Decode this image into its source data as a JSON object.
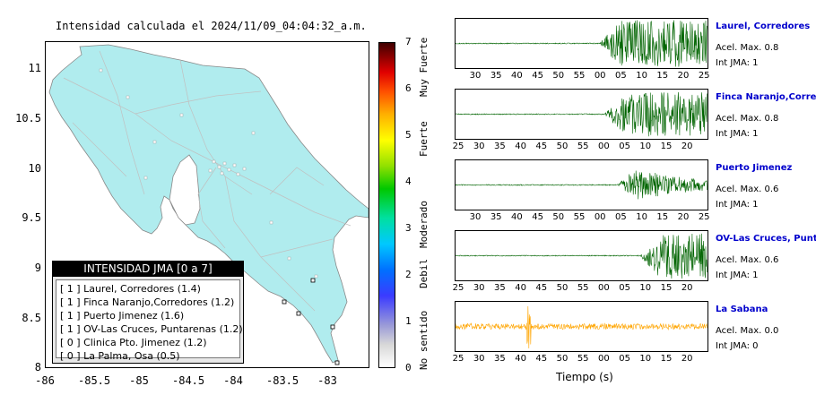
{
  "map": {
    "title": "Intensidad calculada el 2024/11/09_04:04:32_a.m.",
    "y_ticks": [
      "11",
      "10.5",
      "10",
      "9.5",
      "9",
      "8.5",
      "8"
    ],
    "x_ticks": [
      "-86",
      "-85.5",
      "-85",
      "-84.5",
      "-84",
      "-83.5",
      "-83"
    ],
    "land_color": "#b0ecee"
  },
  "legend": {
    "title": "INTENSIDAD JMA [0 a 7]",
    "rows": [
      "[ 1 ]  Laurel, Corredores (1.4)",
      "[ 1 ]  Finca Naranjo,Corredores (1.2)",
      "[ 1 ]  Puerto Jimenez (1.6)",
      "[ 1 ]  OV-Las Cruces, Puntarenas (1.2)",
      "[ 0 ]  Clinica Pto. Jimenez (1.2)",
      "[ 0 ]  La Palma, Osa (0.5)"
    ]
  },
  "colorbar": {
    "ticks": [
      "7",
      "6",
      "5",
      "4",
      "3",
      "2",
      "1",
      "0"
    ],
    "labels": [
      "Muy Fuerte",
      "Fuerte",
      "Moderado",
      "Debil",
      "No sentido"
    ]
  },
  "waveforms": {
    "xlabel": "Tiempo (s)",
    "stations": [
      {
        "name": "Laurel, Corredores",
        "accel": "Acel. Max. 0.8",
        "jma": "Int JMA: 1",
        "color": "#006400",
        "onset": 0.57,
        "amp": 0.95,
        "ticks": [
          "30",
          "35",
          "40",
          "45",
          "50",
          "55",
          "00",
          "05",
          "10",
          "15",
          "20",
          "25"
        ]
      },
      {
        "name": "Finca Naranjo,Corredores",
        "accel": "Acel. Max. 0.8",
        "jma": "Int JMA: 1",
        "color": "#006400",
        "onset": 0.59,
        "amp": 0.9,
        "ticks": [
          "25",
          "30",
          "35",
          "40",
          "45",
          "50",
          "55",
          "00",
          "05",
          "10",
          "15",
          "20"
        ]
      },
      {
        "name": "Puerto Jimenez",
        "accel": "Acel. Max. 0.6",
        "jma": "Int JMA: 1",
        "color": "#006400",
        "onset": 0.64,
        "amp": 0.9,
        "ticks": [
          "30",
          "35",
          "40",
          "45",
          "50",
          "55",
          "00",
          "05",
          "10",
          "15",
          "20",
          "25"
        ]
      },
      {
        "name": "OV-Las Cruces, Puntarenas",
        "accel": "Acel. Max. 0.6",
        "jma": "Int JMA: 1",
        "color": "#006400",
        "onset": 0.73,
        "amp": 0.95,
        "ticks": [
          "25",
          "30",
          "35",
          "40",
          "45",
          "50",
          "55",
          "00",
          "05",
          "10",
          "15",
          "20"
        ]
      },
      {
        "name": "La Sabana",
        "accel": "Acel. Max. 0.0",
        "jma": "Int JMA: 0",
        "color": "#ffa500",
        "onset": 0.29,
        "amp": 0.25,
        "ticks": [
          "25",
          "30",
          "35",
          "40",
          "45",
          "50",
          "55",
          "00",
          "05",
          "10",
          "15",
          "20"
        ]
      }
    ]
  }
}
